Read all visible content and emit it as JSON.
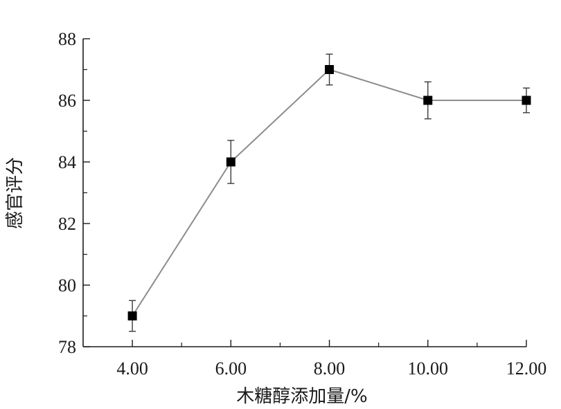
{
  "chart_data": {
    "type": "line",
    "title": "",
    "xlabel": "木糖醇添加量/%",
    "ylabel": "感官评分",
    "x": [
      4.0,
      6.0,
      8.0,
      10.0,
      12.0
    ],
    "x_tick_labels": [
      "4.00",
      "6.00",
      "8.00",
      "10.00",
      "12.00"
    ],
    "xlim": [
      3.0,
      12.0
    ],
    "ylim": [
      78,
      88
    ],
    "y_ticks": [
      78,
      80,
      82,
      84,
      86,
      88
    ],
    "y_tick_labels": [
      "78",
      "80",
      "82",
      "84",
      "86",
      "88"
    ],
    "series": [
      {
        "values": [
          79,
          84,
          87,
          86,
          86
        ],
        "error": [
          0.5,
          0.7,
          0.5,
          0.6,
          0.4
        ]
      }
    ],
    "grid": false,
    "colors": {
      "line": "#8c8c8c",
      "marker": "#000000",
      "axis": "#1a1a1a"
    }
  }
}
